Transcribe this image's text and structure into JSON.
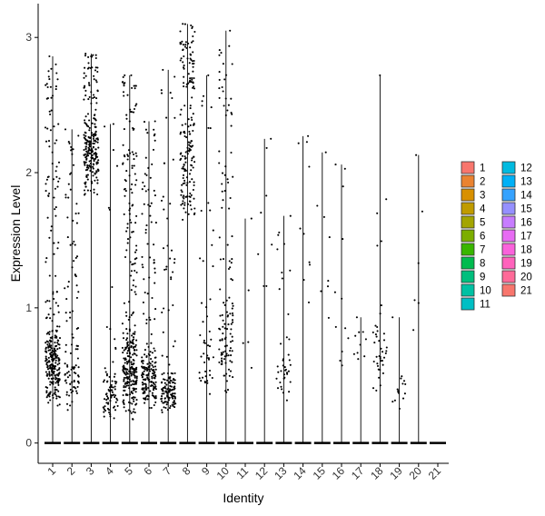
{
  "chart_data": {
    "type": "violin-jitter",
    "xlabel": "Identity",
    "ylabel": "Expression Level",
    "categories": [
      "1",
      "2",
      "3",
      "4",
      "5",
      "6",
      "7",
      "8",
      "9",
      "10",
      "11",
      "12",
      "13",
      "14",
      "15",
      "16",
      "17",
      "18",
      "19",
      "20",
      "21"
    ],
    "ylim": [
      -0.15,
      3.25
    ],
    "yticks": [
      0,
      1,
      2,
      3
    ],
    "grid": false,
    "legend_position": "right",
    "legend": {
      "entries": [
        "1",
        "2",
        "3",
        "4",
        "5",
        "6",
        "7",
        "8",
        "9",
        "10",
        "11",
        "12",
        "13",
        "14",
        "15",
        "16",
        "17",
        "18",
        "19",
        "20",
        "21"
      ],
      "colors": [
        "#F8766D",
        "#EA8331",
        "#D89000",
        "#C09B00",
        "#A3A500",
        "#7CAE00",
        "#39B600",
        "#00BB4E",
        "#00BF7D",
        "#00C1A3",
        "#00BFC4",
        "#00BAE0",
        "#00B0F6",
        "#35A2FF",
        "#9590FF",
        "#C77CFF",
        "#E76BF3",
        "#FA62DB",
        "#FF62BC",
        "#FF6A98",
        "#F8766D"
      ]
    },
    "series": [
      {
        "name": "1",
        "max": 2.86,
        "nonzero_points": 300,
        "low": 0.25,
        "high": 0.9,
        "upper_fraction": 0.28
      },
      {
        "name": "2",
        "max": 2.32,
        "nonzero_points": 110,
        "low": 0.2,
        "high": 0.8,
        "upper_fraction": 0.45
      },
      {
        "name": "3",
        "max": 2.88,
        "nonzero_points": 230,
        "low": 1.8,
        "high": 2.5,
        "upper_fraction": 0.2
      },
      {
        "name": "4",
        "max": 2.36,
        "nonzero_points": 80,
        "low": 0.15,
        "high": 0.55,
        "upper_fraction": 0.18
      },
      {
        "name": "5",
        "max": 2.72,
        "nonzero_points": 320,
        "low": 0.15,
        "high": 0.9,
        "upper_fraction": 0.35
      },
      {
        "name": "6",
        "max": 2.38,
        "nonzero_points": 200,
        "low": 0.2,
        "high": 0.8,
        "upper_fraction": 0.3
      },
      {
        "name": "7",
        "max": 2.76,
        "nonzero_points": 150,
        "low": 0.2,
        "high": 0.55,
        "upper_fraction": 0.25
      },
      {
        "name": "8",
        "max": 3.1,
        "nonzero_points": 180,
        "low": 1.6,
        "high": 2.6,
        "upper_fraction": 0.35
      },
      {
        "name": "9",
        "max": 2.72,
        "nonzero_points": 50,
        "low": 0.3,
        "high": 1.0,
        "upper_fraction": 0.35
      },
      {
        "name": "10",
        "max": 3.05,
        "nonzero_points": 130,
        "low": 0.3,
        "high": 1.2,
        "upper_fraction": 0.4
      },
      {
        "name": "11",
        "max": 1.66,
        "nonzero_points": 5,
        "low": 0.4,
        "high": 1.05,
        "upper_fraction": 0.4
      },
      {
        "name": "12",
        "max": 2.25,
        "nonzero_points": 8,
        "low": 1.0,
        "high": 1.7,
        "upper_fraction": 0.5
      },
      {
        "name": "13",
        "max": 1.68,
        "nonzero_points": 40,
        "low": 0.3,
        "high": 0.8,
        "upper_fraction": 0.25
      },
      {
        "name": "14",
        "max": 2.27,
        "nonzero_points": 10,
        "low": 0.8,
        "high": 1.8,
        "upper_fraction": 0.4
      },
      {
        "name": "15",
        "max": 2.15,
        "nonzero_points": 8,
        "low": 0.9,
        "high": 1.5,
        "upper_fraction": 0.5
      },
      {
        "name": "16",
        "max": 2.06,
        "nonzero_points": 12,
        "low": 0.4,
        "high": 1.3,
        "upper_fraction": 0.3
      },
      {
        "name": "17",
        "max": 0.93,
        "nonzero_points": 10,
        "low": 0.55,
        "high": 0.9,
        "upper_fraction": 0.0
      },
      {
        "name": "18",
        "max": 2.72,
        "nonzero_points": 40,
        "low": 0.3,
        "high": 1.0,
        "upper_fraction": 0.15
      },
      {
        "name": "19",
        "max": 0.93,
        "nonzero_points": 15,
        "low": 0.2,
        "high": 0.6,
        "upper_fraction": 0.0
      },
      {
        "name": "20",
        "max": 2.13,
        "nonzero_points": 6,
        "low": 0.75,
        "high": 1.3,
        "upper_fraction": 0.5
      },
      {
        "name": "21",
        "max": 0.0,
        "nonzero_points": 0,
        "low": 0.0,
        "high": 0.0,
        "upper_fraction": 0.0
      }
    ]
  }
}
